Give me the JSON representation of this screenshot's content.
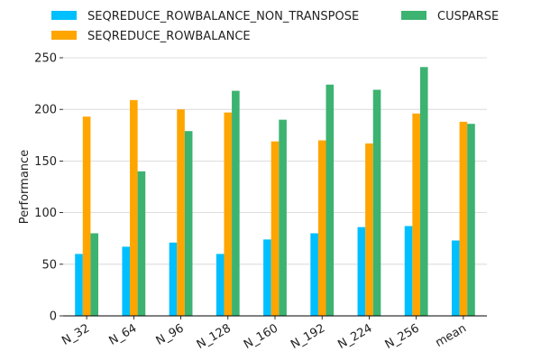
{
  "chart_data": {
    "type": "bar",
    "categories": [
      "N_32",
      "N_64",
      "N_96",
      "N_128",
      "N_160",
      "N_192",
      "N_224",
      "N_256",
      "mean"
    ],
    "series": [
      {
        "name": "SEQREDUCE_ROWBALANCE_NON_TRANSPOSE",
        "color": "#00bfff",
        "values": [
          60,
          67,
          71,
          60,
          74,
          80,
          86,
          87,
          73
        ]
      },
      {
        "name": "SEQREDUCE_ROWBALANCE",
        "color": "#ffa500",
        "values": [
          193,
          209,
          200,
          197,
          169,
          170,
          167,
          196,
          188
        ]
      },
      {
        "name": "CUSPARSE",
        "color": "#3cb371",
        "values": [
          80,
          140,
          179,
          218,
          190,
          224,
          219,
          241,
          186
        ]
      }
    ],
    "ylabel": "Performance",
    "ylim": [
      0,
      250
    ],
    "yticks": [
      0,
      50,
      100,
      150,
      200,
      250
    ],
    "grid": "horizontal",
    "legend": "top"
  }
}
